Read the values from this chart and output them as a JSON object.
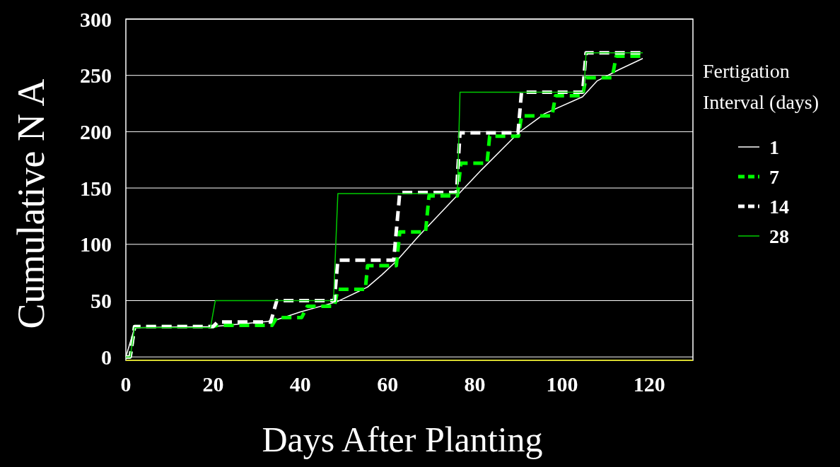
{
  "chart_data": {
    "type": "line",
    "xlabel": "Days After Planting",
    "ylabel": "Cumulative N A",
    "legend_title": "Fertigation Interval (days)",
    "legend": "right",
    "grid": "y",
    "xlim": [
      0,
      130
    ],
    "ylim": [
      -3,
      300
    ],
    "xticks": [
      0,
      20,
      40,
      60,
      80,
      100,
      120
    ],
    "yticks": [
      0,
      50,
      100,
      150,
      200,
      250,
      300
    ],
    "series": [
      {
        "name": "1",
        "color": "#ffffff",
        "line_style": "solid",
        "x": [
          0,
          2,
          2.5,
          20,
          33.8,
          40,
          48.4,
          55.4,
          58.7,
          62,
          67.3,
          76.6,
          81.5,
          90,
          96,
          104.7,
          108,
          113,
          118.5
        ],
        "values": [
          0,
          26,
          26,
          27,
          32,
          40,
          49,
          62,
          73,
          85,
          108,
          146,
          166,
          199,
          216,
          231,
          245,
          255,
          265
        ]
      },
      {
        "name": "7",
        "color": "#00ff00",
        "line_style": "dashed",
        "x": [
          0,
          1,
          2,
          20,
          21,
          33.5,
          34.6,
          40.3,
          41.6,
          47.8,
          48.6,
          54.9,
          55.4,
          62,
          62.8,
          68.7,
          69.5,
          76,
          76.8,
          82.8,
          83.4,
          90,
          90.7,
          97.7,
          98.5,
          104.7,
          105.5,
          111.5,
          112.4,
          118.5
        ],
        "values": [
          0,
          0,
          27,
          27,
          28,
          28,
          35,
          35,
          45,
          45,
          60,
          60,
          81,
          81,
          111,
          111,
          143,
          143,
          172,
          172,
          196,
          196,
          214,
          214,
          232,
          232,
          248,
          248,
          267,
          267
        ]
      },
      {
        "name": "14",
        "color": "#ffffff",
        "line_style": "dashed",
        "x": [
          0,
          1,
          2,
          20,
          21,
          33.2,
          34.6,
          47.8,
          48.6,
          61.4,
          62.8,
          75.8,
          76.6,
          89.9,
          90.7,
          104.7,
          105.5,
          118.5
        ],
        "values": [
          0,
          0,
          27,
          27,
          31,
          31,
          50,
          50,
          86,
          86,
          146,
          146,
          199,
          199,
          235,
          235,
          270,
          270
        ]
      },
      {
        "name": "28",
        "color": "#00cc00",
        "line_style": "solid",
        "x": [
          0,
          1,
          2,
          19.4,
          20.5,
          47.6,
          48.6,
          76,
          76.6,
          105,
          105.5,
          118.5
        ],
        "values": [
          0,
          0,
          26,
          26,
          50,
          50,
          145,
          145,
          235,
          235,
          270,
          270
        ]
      }
    ]
  }
}
